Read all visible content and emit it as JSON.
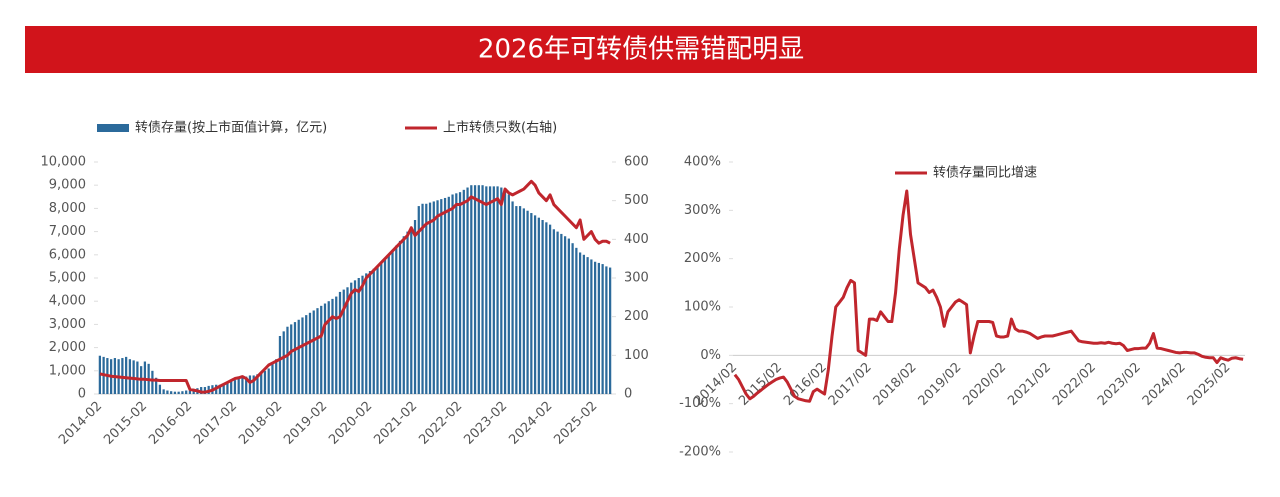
{
  "header": {
    "title": "2026年可转债供需错配明显"
  },
  "chart_data": [
    {
      "type": "combo",
      "categories": [
        "2014-02",
        null,
        null,
        null,
        null,
        null,
        null,
        null,
        null,
        null,
        null,
        null,
        "2015-02",
        null,
        null,
        null,
        null,
        null,
        null,
        null,
        null,
        null,
        null,
        null,
        "2016-02",
        null,
        null,
        null,
        null,
        null,
        null,
        null,
        null,
        null,
        null,
        null,
        "2017-02",
        null,
        null,
        null,
        null,
        null,
        null,
        null,
        null,
        null,
        null,
        null,
        "2018-02",
        null,
        null,
        null,
        null,
        null,
        null,
        null,
        null,
        null,
        null,
        null,
        "2019-02",
        null,
        null,
        null,
        null,
        null,
        null,
        null,
        null,
        null,
        null,
        null,
        "2020-02",
        null,
        null,
        null,
        null,
        null,
        null,
        null,
        null,
        null,
        null,
        null,
        "2021-02",
        null,
        null,
        null,
        null,
        null,
        null,
        null,
        null,
        null,
        null,
        null,
        "2022-02",
        null,
        null,
        null,
        null,
        null,
        null,
        null,
        null,
        null,
        null,
        null,
        "2023-02",
        null,
        null,
        null,
        null,
        null,
        null,
        null,
        null,
        null,
        null,
        null,
        "2024-02",
        null,
        null,
        null,
        null,
        null,
        null,
        null,
        null,
        null,
        null,
        null,
        "2025-02",
        null,
        null,
        null,
        null
      ],
      "series": [
        {
          "name": "转债存量(按上市面值计算，亿元)",
          "type": "bar",
          "color": "#2b6a9b",
          "values": [
            1650,
            1600,
            1550,
            1500,
            1550,
            1500,
            1550,
            1600,
            1500,
            1450,
            1400,
            1200,
            1400,
            1300,
            1000,
            700,
            400,
            200,
            150,
            120,
            100,
            100,
            120,
            150,
            150,
            200,
            250,
            300,
            300,
            350,
            380,
            400,
            400,
            450,
            500,
            550,
            600,
            650,
            700,
            750,
            800,
            800,
            850,
            900,
            1000,
            1100,
            1300,
            1500,
            2500,
            2700,
            2900,
            3000,
            3100,
            3200,
            3300,
            3400,
            3500,
            3600,
            3700,
            3800,
            3900,
            4000,
            4100,
            4200,
            4400,
            4500,
            4600,
            4800,
            4900,
            5000,
            5100,
            5200,
            5300,
            5400,
            5500,
            5700,
            5800,
            6000,
            6200,
            6400,
            6600,
            6800,
            7000,
            7200,
            7500,
            8100,
            8200,
            8200,
            8250,
            8300,
            8350,
            8400,
            8450,
            8500,
            8600,
            8650,
            8700,
            8800,
            8900,
            9000,
            9000,
            9000,
            9000,
            8950,
            8950,
            8950,
            8950,
            8900,
            8800,
            8600,
            8300,
            8100,
            8100,
            8000,
            7900,
            7800,
            7700,
            7600,
            7500,
            7400,
            7300,
            7100,
            7000,
            6900,
            6800,
            6700,
            6500,
            6300,
            6100,
            6000,
            5900,
            5800,
            5700,
            5650,
            5600,
            5500,
            5450
          ]
        },
        {
          "name": "上市转债只数(右轴)",
          "type": "line",
          "axis": "y2",
          "color": "#c0262d",
          "values": [
            52,
            50,
            48,
            46,
            45,
            44,
            43,
            42,
            41,
            40,
            39,
            38,
            38,
            37,
            36,
            36,
            35,
            35,
            35,
            35,
            35,
            35,
            35,
            35,
            12,
            10,
            8,
            5,
            5,
            7,
            10,
            15,
            20,
            25,
            30,
            35,
            40,
            42,
            45,
            40,
            30,
            35,
            45,
            55,
            65,
            75,
            80,
            85,
            90,
            95,
            100,
            110,
            115,
            120,
            125,
            130,
            135,
            140,
            145,
            150,
            180,
            190,
            200,
            195,
            200,
            220,
            240,
            260,
            270,
            265,
            280,
            300,
            310,
            320,
            330,
            340,
            350,
            360,
            370,
            380,
            390,
            400,
            410,
            430,
            410,
            420,
            430,
            440,
            445,
            450,
            460,
            465,
            470,
            475,
            480,
            490,
            490,
            495,
            500,
            510,
            505,
            500,
            495,
            490,
            495,
            500,
            505,
            490,
            530,
            520,
            515,
            520,
            525,
            530,
            540,
            550,
            540,
            520,
            510,
            500,
            515,
            490,
            480,
            470,
            460,
            450,
            440,
            430,
            450,
            400,
            410,
            420,
            400,
            390,
            395,
            395,
            390
          ]
        }
      ],
      "ylim": [
        0,
        10000
      ],
      "yticks": [
        0,
        {
          "value": 1000,
          "label": "1,000"
        },
        {
          "value": 2000,
          "label": "2,000"
        },
        {
          "value": 3000,
          "label": "3,000"
        },
        {
          "value": 4000,
          "label": "4,000"
        },
        {
          "value": 5000,
          "label": "5,000"
        },
        {
          "value": 6000,
          "label": "6,000"
        },
        {
          "value": 7000,
          "label": "7,000"
        },
        {
          "value": 8000,
          "label": "8,000"
        },
        {
          "value": 9000,
          "label": "9,000"
        },
        {
          "value": 10000,
          "label": "10,000"
        }
      ],
      "y2lim": [
        0,
        600
      ],
      "y2ticks": [
        0,
        100,
        200,
        300,
        400,
        500,
        600
      ],
      "legend": "top"
    },
    {
      "type": "line",
      "categories": [
        "2014/02",
        null,
        null,
        null,
        null,
        null,
        null,
        null,
        null,
        null,
        null,
        null,
        "2015/02",
        null,
        null,
        null,
        null,
        null,
        null,
        null,
        null,
        null,
        null,
        null,
        "2016/02",
        null,
        null,
        null,
        null,
        null,
        null,
        null,
        null,
        null,
        null,
        null,
        "2017/02",
        null,
        null,
        null,
        null,
        null,
        null,
        null,
        null,
        null,
        null,
        null,
        "2018/02",
        null,
        null,
        null,
        null,
        null,
        null,
        null,
        null,
        null,
        null,
        null,
        "2019/02",
        null,
        null,
        null,
        null,
        null,
        null,
        null,
        null,
        null,
        null,
        null,
        "2020/02",
        null,
        null,
        null,
        null,
        null,
        null,
        null,
        null,
        null,
        null,
        null,
        "2021/02",
        null,
        null,
        null,
        null,
        null,
        null,
        null,
        null,
        null,
        null,
        null,
        "2022/02",
        null,
        null,
        null,
        null,
        null,
        null,
        null,
        null,
        null,
        null,
        null,
        "2023/02",
        null,
        null,
        null,
        null,
        null,
        null,
        null,
        null,
        null,
        null,
        null,
        "2024/02",
        null,
        null,
        null,
        null,
        null,
        null,
        null,
        null,
        null,
        null,
        null,
        "2025/02",
        null,
        null,
        null,
        null
      ],
      "series": [
        {
          "name": "转债存量同比增速",
          "color": "#c0262d",
          "values": [
            -40,
            -50,
            -65,
            -80,
            -90,
            -85,
            -78,
            -72,
            -66,
            -60,
            -55,
            -50,
            -47,
            -45,
            -55,
            -70,
            -85,
            -90,
            -92,
            -94,
            -95,
            -75,
            -70,
            -75,
            -80,
            -30,
            40,
            100,
            110,
            120,
            140,
            155,
            150,
            10,
            5,
            0,
            75,
            75,
            72,
            90,
            80,
            70,
            70,
            130,
            220,
            290,
            340,
            250,
            200,
            150,
            145,
            140,
            130,
            135,
            120,
            100,
            60,
            90,
            100,
            110,
            115,
            110,
            105,
            5,
            40,
            70,
            70,
            70,
            70,
            68,
            40,
            38,
            38,
            40,
            75,
            55,
            50,
            50,
            48,
            45,
            40,
            35,
            38,
            40,
            40,
            40,
            42,
            44,
            46,
            48,
            50,
            40,
            30,
            28,
            27,
            26,
            25,
            25,
            26,
            25,
            27,
            25,
            24,
            25,
            20,
            10,
            12,
            14,
            14,
            15,
            15,
            25,
            45,
            15,
            14,
            12,
            10,
            8,
            6,
            5,
            6,
            6,
            5,
            5,
            2,
            -2,
            -4,
            -5,
            -5,
            -15,
            -5,
            -8,
            -10,
            -6,
            -5,
            -7,
            -8
          ]
        }
      ],
      "ylim": [
        -200,
        400
      ],
      "yticks": [
        {
          "value": -200,
          "label": "-200%"
        },
        {
          "value": -100,
          "label": "-100%"
        },
        {
          "value": 0,
          "label": "0%"
        },
        {
          "value": 100,
          "label": "100%"
        },
        {
          "value": 200,
          "label": "200%"
        },
        {
          "value": 300,
          "label": "300%"
        },
        {
          "value": 400,
          "label": "400%"
        }
      ],
      "legend": "top"
    }
  ]
}
